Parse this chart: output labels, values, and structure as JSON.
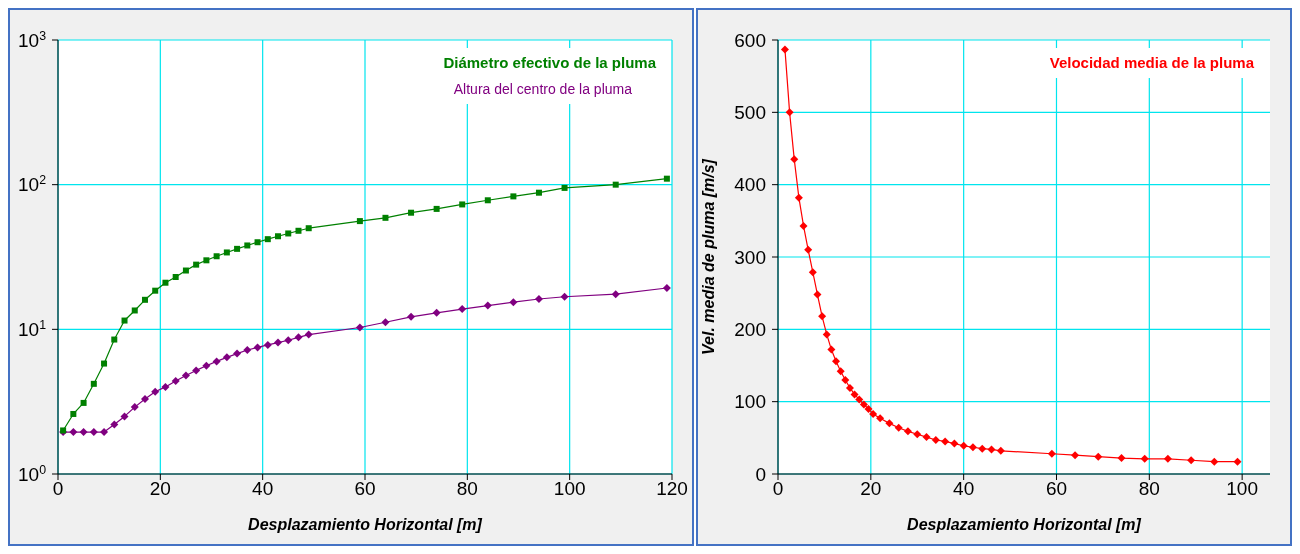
{
  "chart_data": [
    {
      "type": "line",
      "xlabel": "Desplazamiento Horizontal  [m]",
      "xlim": [
        0,
        120
      ],
      "xticks": [
        0,
        20,
        40,
        60,
        80,
        100,
        120
      ],
      "ylim": [
        1,
        1000
      ],
      "yticks": [
        {
          "value": 1,
          "label": "10$^{0}$"
        },
        {
          "value": 10,
          "label": "10$^{1}$"
        },
        {
          "value": 100,
          "label": "10$^{2}$"
        },
        {
          "value": 1000,
          "label": "10$^{3}$"
        }
      ],
      "log": "y",
      "grid": true,
      "legend": "top right",
      "series": [
        {
          "name": "Diámetro efectivo de la pluma",
          "color": "#008000",
          "marker": "square",
          "x": [
            1,
            3,
            5,
            7,
            9,
            11,
            13,
            15,
            17,
            19,
            21,
            23,
            25,
            27,
            29,
            31,
            33,
            35,
            37,
            39,
            41,
            43,
            45,
            47,
            49,
            59,
            64,
            69,
            74,
            79,
            84,
            89,
            94,
            99,
            109,
            119
          ],
          "values": [
            2.0,
            2.6,
            3.1,
            4.2,
            5.8,
            8.5,
            11.5,
            13.5,
            16,
            18.5,
            21,
            23,
            25.5,
            28,
            30,
            32,
            34,
            36,
            38,
            40,
            42,
            44,
            46,
            48,
            50,
            56,
            59,
            64,
            68,
            73,
            78,
            83,
            88,
            95,
            100,
            110
          ]
        },
        {
          "name": "Altura del centro de la pluma",
          "color": "#800080",
          "marker": "diamond",
          "x": [
            1,
            3,
            5,
            7,
            9,
            11,
            13,
            15,
            17,
            19,
            21,
            23,
            25,
            27,
            29,
            31,
            33,
            35,
            37,
            39,
            41,
            43,
            45,
            47,
            49,
            59,
            64,
            69,
            74,
            79,
            84,
            89,
            94,
            99,
            109,
            119
          ],
          "values": [
            1.95,
            1.95,
            1.95,
            1.95,
            1.95,
            2.2,
            2.5,
            2.9,
            3.3,
            3.7,
            4.0,
            4.4,
            4.8,
            5.2,
            5.6,
            6.0,
            6.4,
            6.8,
            7.2,
            7.5,
            7.8,
            8.1,
            8.4,
            8.8,
            9.2,
            10.3,
            11.2,
            12.2,
            13.0,
            13.8,
            14.6,
            15.4,
            16.2,
            16.8,
            17.5,
            19.3
          ]
        }
      ]
    },
    {
      "type": "line",
      "xlabel": "Desplazamiento Horizontal  [m]",
      "ylabel": "Vel. media de pluma  [m/s]",
      "xlim": [
        0,
        106
      ],
      "xticks": [
        0,
        20,
        40,
        60,
        80,
        100
      ],
      "ylim": [
        0,
        600
      ],
      "yticks": [
        0,
        100,
        200,
        300,
        400,
        500,
        600
      ],
      "grid": true,
      "legend": "top right",
      "series": [
        {
          "name": "Velocidad media de la pluma",
          "color": "#ff0000",
          "marker": "diamond",
          "x": [
            1.5,
            2.5,
            3.5,
            4.5,
            5.5,
            6.5,
            7.5,
            8.5,
            9.5,
            10.5,
            11.5,
            12.5,
            13.5,
            14.5,
            15.5,
            16.5,
            17.5,
            18.5,
            19.5,
            20.5,
            22,
            24,
            26,
            28,
            30,
            32,
            34,
            36,
            38,
            40,
            42,
            44,
            46,
            48,
            59,
            64,
            69,
            74,
            79,
            84,
            89,
            94,
            99
          ],
          "values": [
            587,
            500,
            435,
            382,
            343,
            310,
            279,
            248,
            218,
            193,
            172,
            156,
            142,
            130,
            119,
            110,
            103,
            96,
            90,
            83,
            77,
            70,
            64,
            59,
            55,
            51,
            47,
            45,
            42,
            39,
            37,
            35,
            34,
            32,
            28,
            26,
            24,
            22,
            21,
            21,
            19,
            17,
            17
          ]
        }
      ]
    }
  ]
}
